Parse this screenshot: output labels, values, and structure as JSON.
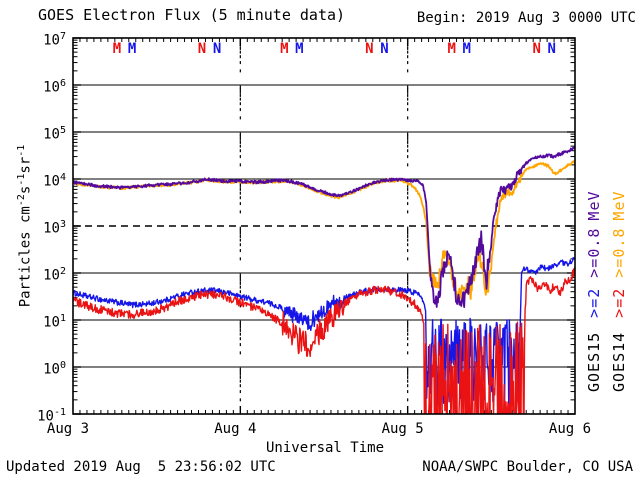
{
  "header": {
    "title": "GOES Electron Flux (5 minute data)",
    "begin": "Begin: 2019 Aug 3 0000 UTC"
  },
  "footer": {
    "updated": "Updated 2019 Aug  5 23:56:02 UTC",
    "credit": "NOAA/SWPC Boulder, CO USA"
  },
  "palette": {
    "blue": "#1616e8",
    "red": "#ea1212",
    "orange": "#ffa500",
    "purple": "#530a9d",
    "black": "#000000",
    "background": "#ffffff"
  },
  "axes": {
    "y": {
      "title_segments": [
        {
          "t": "Particles cm",
          "sup": false
        },
        {
          "t": "-2",
          "sup": true
        },
        {
          "t": "s",
          "sup": false
        },
        {
          "t": "-1",
          "sup": true
        },
        {
          "t": "sr",
          "sup": false
        },
        {
          "t": "-1",
          "sup": true
        }
      ],
      "tick_exponents": [
        7,
        6,
        5,
        4,
        3,
        2,
        1,
        0,
        -1
      ],
      "solid_grid_exponents": [
        6,
        5,
        4,
        2,
        1,
        0
      ],
      "dashed_grid_exponents": [
        3
      ],
      "scale": "log"
    },
    "x": {
      "title": "Universal Time",
      "tick_labels": [
        "Aug 3",
        "Aug 4",
        "Aug 5",
        "Aug 6"
      ],
      "days": 3,
      "minor_ticks_per_day": 24
    }
  },
  "satellite_markers": [
    {
      "label": "M",
      "color": "red",
      "x_day": 0.263
    },
    {
      "label": "M",
      "color": "blue",
      "x_day": 0.353
    },
    {
      "label": "N",
      "color": "red",
      "x_day": 0.771
    },
    {
      "label": "N",
      "color": "blue",
      "x_day": 0.861
    },
    {
      "label": "M",
      "color": "red",
      "x_day": 1.263
    },
    {
      "label": "M",
      "color": "blue",
      "x_day": 1.353
    },
    {
      "label": "N",
      "color": "red",
      "x_day": 1.771
    },
    {
      "label": "N",
      "color": "blue",
      "x_day": 1.861
    },
    {
      "label": "M",
      "color": "red",
      "x_day": 2.263
    },
    {
      "label": "M",
      "color": "blue",
      "x_day": 2.353
    },
    {
      "label": "N",
      "color": "red",
      "x_day": 2.771
    },
    {
      "label": "N",
      "color": "blue",
      "x_day": 2.861
    }
  ],
  "legend": {
    "columns": [
      {
        "satellite": "GOES15",
        "segments": [
          {
            "text": "GOES15",
            "color": "black"
          },
          {
            "text": ">=2",
            "color": "blue"
          },
          {
            "text": ">=0.8",
            "color": "purple"
          },
          {
            "text": "MeV",
            "color": "purple"
          }
        ]
      },
      {
        "satellite": "GOES14",
        "segments": [
          {
            "text": "GOES14",
            "color": "black"
          },
          {
            "text": ">=2",
            "color": "red"
          },
          {
            "text": ">=0.8",
            "color": "orange"
          },
          {
            "text": "MeV",
            "color": "orange"
          }
        ]
      }
    ]
  },
  "chart_data": {
    "type": "line",
    "title": "GOES Electron Flux (5 minute data)",
    "xlabel": "Universal Time",
    "ylabel": "Particles cm-2 s-1 sr-1",
    "x_range_days": [
      0,
      3
    ],
    "x_start": "2019 Aug 3 0000 UTC",
    "x_end": "2019 Aug 6 0000 UTC",
    "ylim": [
      0.1,
      10000000
    ],
    "yscale": "log",
    "grid": "horizontal-solid-per-decade, dashed at 1e3, dotted vertical day boundaries",
    "legend_position": "right, rotated",
    "series": [
      {
        "name": "GOES15 >=2 MeV",
        "color": "blue",
        "width": 1.4,
        "jitter_decades": 0.06,
        "anchors": [
          [
            0,
            38
          ],
          [
            0.08,
            32
          ],
          [
            0.15,
            28
          ],
          [
            0.25,
            24
          ],
          [
            0.35,
            21
          ],
          [
            0.45,
            22
          ],
          [
            0.55,
            26
          ],
          [
            0.62,
            32
          ],
          [
            0.7,
            38
          ],
          [
            0.78,
            42
          ],
          [
            0.85,
            42
          ],
          [
            0.92,
            38
          ],
          [
            1.0,
            32
          ],
          [
            1.08,
            27
          ],
          [
            1.15,
            24
          ],
          [
            1.22,
            20
          ],
          [
            1.3,
            14
          ],
          [
            1.36,
            10
          ],
          [
            1.42,
            9
          ],
          [
            1.48,
            14
          ],
          [
            1.55,
            22
          ],
          [
            1.62,
            30
          ],
          [
            1.7,
            38
          ],
          [
            1.78,
            44
          ],
          [
            1.85,
            46
          ],
          [
            1.92,
            44
          ],
          [
            2.0,
            42
          ],
          [
            2.05,
            38
          ],
          [
            2.08,
            33
          ],
          [
            2.1,
            24
          ],
          [
            2.12,
            6
          ],
          [
            2.2,
            3
          ],
          [
            2.3,
            2
          ],
          [
            2.4,
            3
          ],
          [
            2.5,
            2
          ],
          [
            2.6,
            2.5
          ],
          [
            2.67,
            3
          ],
          [
            2.68,
            90
          ],
          [
            2.7,
            130
          ],
          [
            2.73,
            110
          ],
          [
            2.76,
            95
          ],
          [
            2.8,
            140
          ],
          [
            2.84,
            120
          ],
          [
            2.88,
            150
          ],
          [
            2.92,
            170
          ],
          [
            2.96,
            150
          ],
          [
            3.0,
            230
          ]
        ],
        "extra_jitter_windows": [
          {
            "x0": 1.25,
            "x1": 1.62,
            "amp": 0.15
          }
        ],
        "noise_windows": [
          {
            "x0": 2.11,
            "x1": 2.67,
            "lo": 0.15,
            "hi": 11,
            "bias": 0.75
          }
        ]
      },
      {
        "name": "GOES14 >=2 MeV",
        "color": "red",
        "width": 1.4,
        "jitter_decades": 0.09,
        "anchors": [
          [
            0,
            26
          ],
          [
            0.08,
            20
          ],
          [
            0.15,
            17
          ],
          [
            0.25,
            14
          ],
          [
            0.35,
            13
          ],
          [
            0.45,
            15
          ],
          [
            0.55,
            18
          ],
          [
            0.62,
            24
          ],
          [
            0.7,
            30
          ],
          [
            0.78,
            34
          ],
          [
            0.85,
            35
          ],
          [
            0.92,
            30
          ],
          [
            1.0,
            24
          ],
          [
            1.08,
            18
          ],
          [
            1.15,
            14
          ],
          [
            1.22,
            10
          ],
          [
            1.3,
            6
          ],
          [
            1.36,
            3.5
          ],
          [
            1.42,
            3
          ],
          [
            1.48,
            6
          ],
          [
            1.55,
            12
          ],
          [
            1.62,
            22
          ],
          [
            1.7,
            32
          ],
          [
            1.78,
            42
          ],
          [
            1.85,
            45
          ],
          [
            1.92,
            40
          ],
          [
            2.0,
            30
          ],
          [
            2.04,
            22
          ],
          [
            2.07,
            16
          ],
          [
            2.09,
            10
          ],
          [
            2.12,
            2
          ],
          [
            2.3,
            1.5
          ],
          [
            2.5,
            1.5
          ],
          [
            2.69,
            2
          ],
          [
            2.71,
            55
          ],
          [
            2.73,
            75
          ],
          [
            2.76,
            55
          ],
          [
            2.79,
            45
          ],
          [
            2.82,
            60
          ],
          [
            2.85,
            42
          ],
          [
            2.88,
            52
          ],
          [
            2.91,
            38
          ],
          [
            2.94,
            65
          ],
          [
            2.97,
            75
          ],
          [
            3.0,
            115
          ]
        ],
        "extra_jitter_windows": [
          {
            "x0": 1.25,
            "x1": 1.62,
            "amp": 0.25
          }
        ],
        "noise_windows": [
          {
            "x0": 2.1,
            "x1": 2.7,
            "lo": 0.02,
            "hi": 9,
            "bias": 1.6
          }
        ]
      },
      {
        "name": "GOES14 >=0.8 MeV",
        "color": "orange",
        "width": 1.8,
        "jitter_decades": 0.03,
        "anchors": [
          [
            0,
            8200
          ],
          [
            0.06,
            7600
          ],
          [
            0.14,
            7000
          ],
          [
            0.22,
            6600
          ],
          [
            0.3,
            6400
          ],
          [
            0.4,
            6900
          ],
          [
            0.5,
            7300
          ],
          [
            0.6,
            7600
          ],
          [
            0.7,
            8300
          ],
          [
            0.8,
            9500
          ],
          [
            0.88,
            8900
          ],
          [
            0.95,
            8600
          ],
          [
            1.0,
            8800
          ],
          [
            1.08,
            8400
          ],
          [
            1.15,
            8600
          ],
          [
            1.22,
            9000
          ],
          [
            1.3,
            8800
          ],
          [
            1.38,
            7200
          ],
          [
            1.45,
            5600
          ],
          [
            1.52,
            4600
          ],
          [
            1.58,
            4000
          ],
          [
            1.65,
            4800
          ],
          [
            1.72,
            6200
          ],
          [
            1.8,
            8200
          ],
          [
            1.88,
            9200
          ],
          [
            1.95,
            9300
          ],
          [
            1.98,
            8800
          ],
          [
            2.02,
            7500
          ],
          [
            2.05,
            6000
          ],
          [
            2.07,
            4500
          ],
          [
            2.09,
            2800
          ],
          [
            2.11,
            1300
          ],
          [
            2.12,
            400
          ],
          [
            2.13,
            130
          ],
          [
            2.15,
            65
          ],
          [
            2.17,
            55
          ],
          [
            2.19,
            80
          ],
          [
            2.21,
            190
          ],
          [
            2.23,
            280
          ],
          [
            2.25,
            170
          ],
          [
            2.27,
            70
          ],
          [
            2.29,
            42
          ],
          [
            2.31,
            32
          ],
          [
            2.33,
            45
          ],
          [
            2.36,
            55
          ],
          [
            2.38,
            40
          ],
          [
            2.4,
            120
          ],
          [
            2.42,
            250
          ],
          [
            2.44,
            190
          ],
          [
            2.46,
            55
          ],
          [
            2.47,
            38
          ],
          [
            2.49,
            90
          ],
          [
            2.51,
            350
          ],
          [
            2.53,
            1100
          ],
          [
            2.55,
            3000
          ],
          [
            2.57,
            4500
          ],
          [
            2.6,
            5200
          ],
          [
            2.62,
            4800
          ],
          [
            2.64,
            6500
          ],
          [
            2.66,
            9000
          ],
          [
            2.69,
            13000
          ],
          [
            2.72,
            17000
          ],
          [
            2.76,
            19000
          ],
          [
            2.8,
            21000
          ],
          [
            2.84,
            19000
          ],
          [
            2.87,
            14000
          ],
          [
            2.89,
            12500
          ],
          [
            2.92,
            16000
          ],
          [
            2.95,
            19000
          ],
          [
            3.0,
            24000
          ]
        ],
        "extra_jitter_windows": [
          {
            "x0": 2.13,
            "x1": 2.5,
            "amp": 0.2
          },
          {
            "x0": 2.5,
            "x1": 2.68,
            "amp": 0.08
          }
        ],
        "noise_windows": []
      },
      {
        "name": "GOES15 >=0.8 MeV",
        "color": "purple",
        "width": 1.8,
        "jitter_decades": 0.03,
        "anchors": [
          [
            0,
            8500
          ],
          [
            0.06,
            8000
          ],
          [
            0.14,
            7200
          ],
          [
            0.22,
            6800
          ],
          [
            0.3,
            6500
          ],
          [
            0.4,
            7000
          ],
          [
            0.5,
            7500
          ],
          [
            0.6,
            7800
          ],
          [
            0.7,
            8500
          ],
          [
            0.8,
            9800
          ],
          [
            0.88,
            9200
          ],
          [
            0.95,
            8800
          ],
          [
            1.0,
            9000
          ],
          [
            1.08,
            8600
          ],
          [
            1.15,
            8800
          ],
          [
            1.22,
            9300
          ],
          [
            1.3,
            9000
          ],
          [
            1.38,
            7500
          ],
          [
            1.45,
            6000
          ],
          [
            1.52,
            5000
          ],
          [
            1.58,
            4300
          ],
          [
            1.65,
            5000
          ],
          [
            1.72,
            6500
          ],
          [
            1.8,
            8500
          ],
          [
            1.88,
            9500
          ],
          [
            1.95,
            9800
          ],
          [
            2.0,
            9500
          ],
          [
            2.04,
            9200
          ],
          [
            2.07,
            8800
          ],
          [
            2.09,
            7500
          ],
          [
            2.11,
            3500
          ],
          [
            2.12,
            900
          ],
          [
            2.13,
            180
          ],
          [
            2.15,
            40
          ],
          [
            2.17,
            26
          ],
          [
            2.19,
            40
          ],
          [
            2.21,
            110
          ],
          [
            2.23,
            190
          ],
          [
            2.25,
            230
          ],
          [
            2.27,
            90
          ],
          [
            2.29,
            35
          ],
          [
            2.31,
            22
          ],
          [
            2.34,
            28
          ],
          [
            2.37,
            60
          ],
          [
            2.4,
            150
          ],
          [
            2.42,
            300
          ],
          [
            2.44,
            480
          ],
          [
            2.46,
            130
          ],
          [
            2.47,
            60
          ],
          [
            2.48,
            150
          ],
          [
            2.5,
            600
          ],
          [
            2.52,
            1800
          ],
          [
            2.54,
            4000
          ],
          [
            2.56,
            6500
          ],
          [
            2.58,
            5500
          ],
          [
            2.6,
            7500
          ],
          [
            2.62,
            6500
          ],
          [
            2.64,
            9000
          ],
          [
            2.66,
            13000
          ],
          [
            2.69,
            18000
          ],
          [
            2.72,
            24000
          ],
          [
            2.76,
            28000
          ],
          [
            2.8,
            30000
          ],
          [
            2.84,
            32000
          ],
          [
            2.87,
            30000
          ],
          [
            2.9,
            33000
          ],
          [
            2.93,
            36000
          ],
          [
            2.96,
            38000
          ],
          [
            3.0,
            48000
          ]
        ],
        "extra_jitter_windows": [
          {
            "x0": 2.13,
            "x1": 2.5,
            "amp": 0.2
          },
          {
            "x0": 2.5,
            "x1": 2.68,
            "amp": 0.08
          }
        ],
        "noise_windows": []
      }
    ]
  }
}
